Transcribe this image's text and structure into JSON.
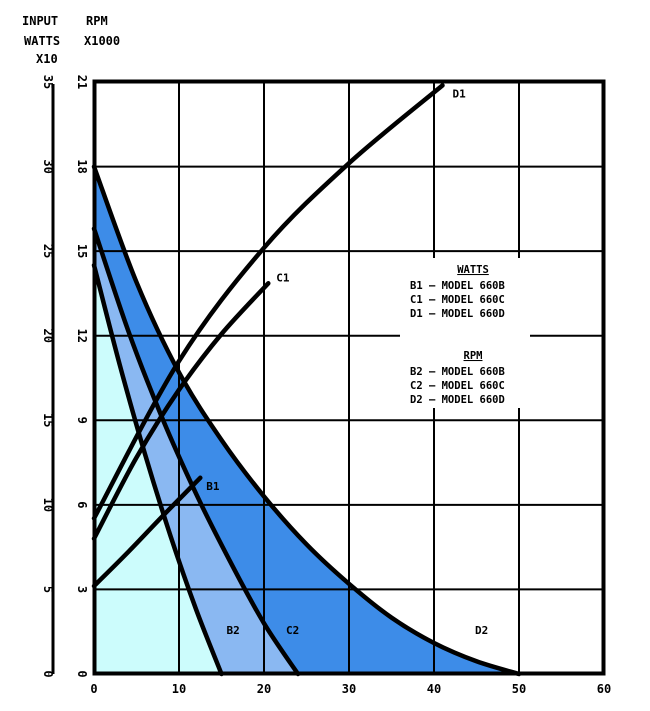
{
  "header": {
    "watts_axis_title": [
      "INPUT",
      "WATTS",
      "X10"
    ],
    "rpm_axis_title": [
      "RPM",
      "X1000"
    ]
  },
  "chart_data": {
    "type": "line",
    "x_ticks": [
      "0",
      "10",
      "20",
      "30",
      "40",
      "50",
      "60"
    ],
    "watts_ticks": [
      "0",
      "5",
      "10",
      "15",
      "20",
      "25",
      "30",
      "35"
    ],
    "rpm_ticks": [
      "0",
      "3",
      "6",
      "9",
      "12",
      "15",
      "18",
      "21"
    ],
    "xlim": [
      0,
      60
    ],
    "watts_lim": [
      0,
      35
    ],
    "rpm_lim": [
      0,
      21
    ],
    "grid": true,
    "legend": {
      "watts_title": "WATTS",
      "watts_entries": [
        "B1 — MODEL 660B",
        "C1 — MODEL 660C",
        "D1 — MODEL 660D"
      ],
      "rpm_title": "RPM",
      "rpm_entries": [
        "B2 — MODEL 660B",
        "C2 — MODEL 660C",
        "D2 — MODEL 660D"
      ],
      "placement": "right-middle"
    },
    "colors": {
      "fill_b": "#ccfcfc",
      "fill_c": "#8ab8f2",
      "fill_d": "#3d8ce8",
      "line": "#000000",
      "grid": "#000000"
    },
    "series": [
      {
        "name": "B1",
        "axis": "watts",
        "label": "B1",
        "x": [
          0,
          4,
          8,
          12.5
        ],
        "y": [
          5.2,
          7.2,
          9.3,
          11.6
        ]
      },
      {
        "name": "C1",
        "axis": "watts",
        "label": "C1",
        "x": [
          0,
          5,
          10,
          15,
          20.5
        ],
        "y": [
          8.0,
          12.8,
          16.8,
          20.1,
          23.1
        ]
      },
      {
        "name": "D1",
        "axis": "watts",
        "label": "D1",
        "x": [
          0,
          10,
          20,
          30,
          41
        ],
        "y": [
          9.2,
          18.5,
          25.2,
          30.2,
          34.8
        ]
      },
      {
        "name": "B2",
        "axis": "rpm",
        "label": "B2",
        "x": [
          0,
          3,
          6,
          9,
          12,
          15
        ],
        "y": [
          14.5,
          11.0,
          7.8,
          4.9,
          2.3,
          0
        ]
      },
      {
        "name": "C2",
        "axis": "rpm",
        "label": "C2",
        "x": [
          0,
          4,
          8,
          12,
          16,
          20,
          24
        ],
        "y": [
          15.8,
          12.2,
          9.1,
          6.4,
          4.0,
          1.8,
          0
        ]
      },
      {
        "name": "D2",
        "axis": "rpm",
        "label": "D2",
        "x": [
          0,
          5,
          10,
          15,
          20,
          25,
          30,
          35,
          40,
          45,
          50
        ],
        "y": [
          18.0,
          13.9,
          10.7,
          8.3,
          6.3,
          4.6,
          3.2,
          2.0,
          1.1,
          0.45,
          0
        ]
      }
    ]
  }
}
